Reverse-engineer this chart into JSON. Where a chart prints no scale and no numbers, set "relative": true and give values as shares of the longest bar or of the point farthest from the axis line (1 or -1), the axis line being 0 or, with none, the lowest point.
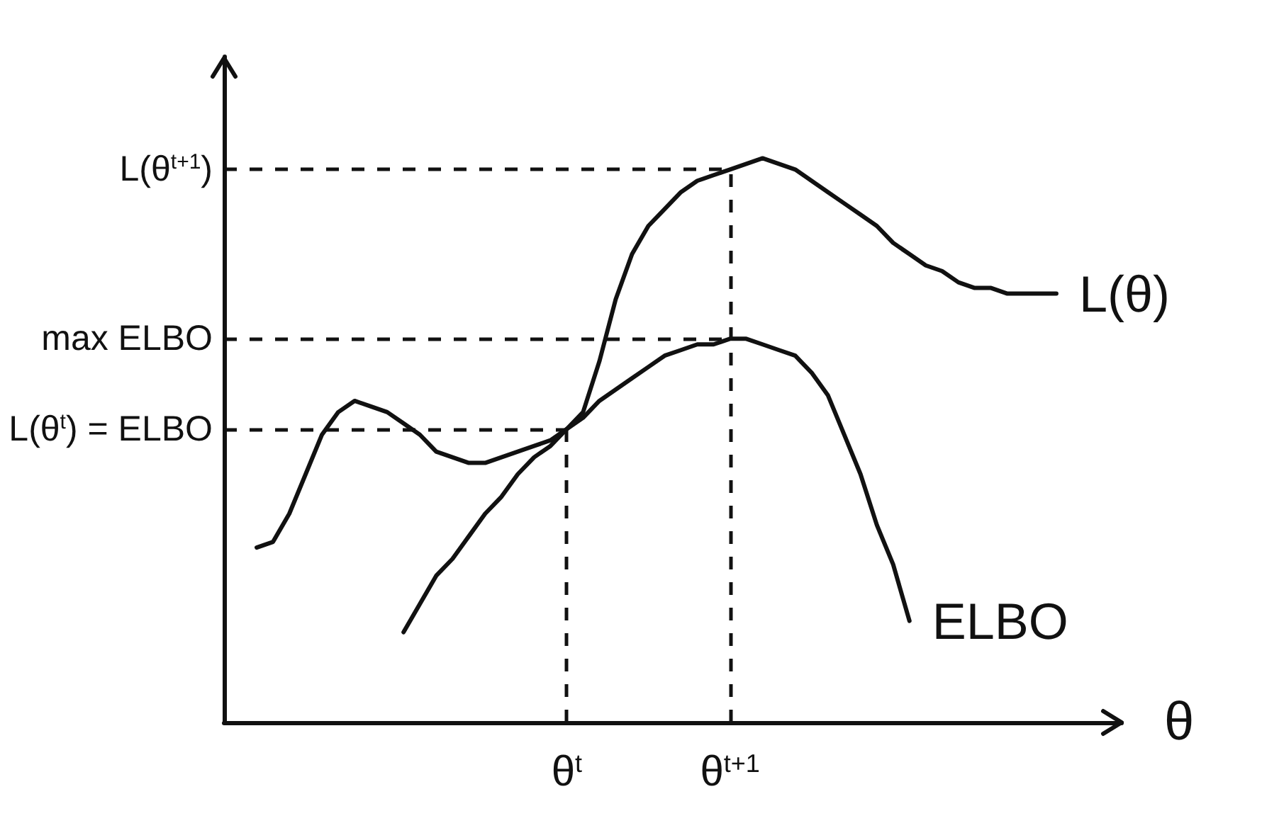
{
  "chart_data": {
    "type": "line",
    "relative": true,
    "xlabel": "θ",
    "categories": [
      null,
      null,
      null,
      null,
      null,
      null,
      null,
      null,
      null,
      null,
      null,
      null,
      null,
      null,
      null,
      null,
      null,
      null,
      null,
      null,
      null,
      "θ$^{t}$",
      null,
      null,
      null,
      null,
      null,
      null,
      null,
      null,
      null,
      "θ$^{t+1}$",
      null,
      null,
      null,
      null,
      null,
      null,
      null,
      null,
      null,
      null,
      null,
      null,
      null,
      null,
      null,
      null,
      null,
      null,
      null,
      null,
      null,
      null,
      null,
      null
    ],
    "series": [
      {
        "name": "L(θ)",
        "color": "#111111",
        "values": [
          null,
          null,
          0.31,
          0.32,
          0.37,
          0.44,
          0.51,
          0.55,
          0.57,
          0.56,
          0.55,
          0.53,
          0.51,
          0.48,
          0.47,
          0.46,
          0.46,
          0.47,
          0.48,
          0.49,
          0.5,
          0.52,
          0.55,
          0.64,
          0.75,
          0.83,
          0.88,
          0.91,
          0.94,
          0.96,
          0.97,
          0.98,
          0.99,
          1,
          0.99,
          0.98,
          0.96,
          0.94,
          0.92,
          0.9,
          0.88,
          0.85,
          0.83,
          0.81,
          0.8,
          0.78,
          0.77,
          0.77,
          0.76,
          0.76,
          0.76,
          0.76,
          null,
          null,
          null,
          null
        ]
      },
      {
        "name": "ELBO",
        "color": "#111111",
        "values": [
          null,
          null,
          null,
          null,
          null,
          null,
          null,
          null,
          null,
          null,
          null,
          0.16,
          0.21,
          0.26,
          0.29,
          0.33,
          0.37,
          0.4,
          0.44,
          0.47,
          0.49,
          0.52,
          0.54,
          0.57,
          0.59,
          0.61,
          0.63,
          0.65,
          0.66,
          0.67,
          0.67,
          0.68,
          0.68,
          0.67,
          0.66,
          0.65,
          0.62,
          0.58,
          0.51,
          0.44,
          0.35,
          0.28,
          0.18,
          null,
          null,
          null,
          null,
          null,
          null,
          null,
          null,
          null,
          null,
          null,
          null,
          null
        ]
      }
    ],
    "ref_lines": [
      {
        "axis": "y",
        "value": 0.98,
        "label": "L(θ$^{t+1}$)",
        "line_style": "dashed",
        "color": "#111111"
      },
      {
        "axis": "y",
        "value": 0.68,
        "label": "max ELBO",
        "line_style": "dashed",
        "color": "#111111"
      },
      {
        "axis": "y",
        "value": 0.52,
        "label": "L(θ$^{t}$) = ELBO",
        "line_style": "dashed",
        "color": "#111111"
      },
      {
        "axis": "x",
        "value": "θ$^{t}$",
        "line_style": "dashed",
        "color": "#111111"
      },
      {
        "axis": "x",
        "value": "θ$^{t+1}$",
        "line_style": "dashed",
        "color": "#111111"
      }
    ],
    "marker": "none",
    "line_style": "solid",
    "grid": false
  }
}
